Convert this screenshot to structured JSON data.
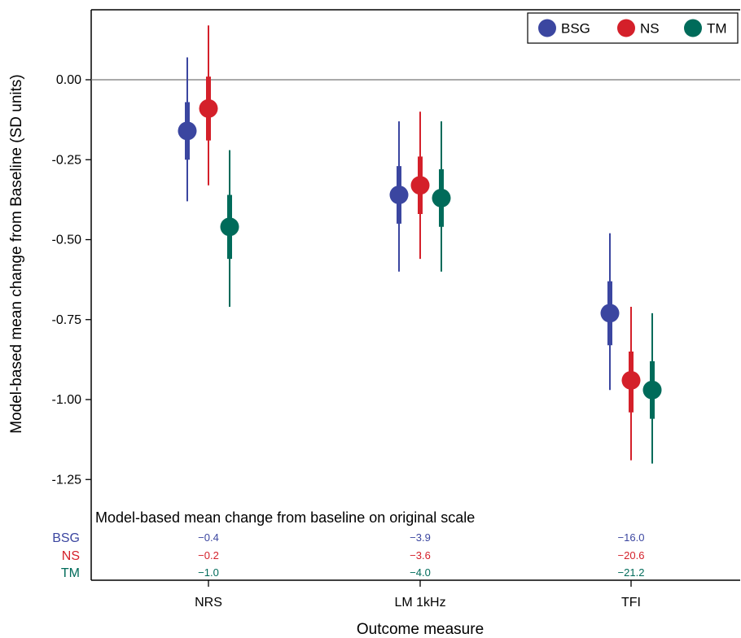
{
  "chart_data": {
    "type": "scatter",
    "ylabel": "Model-based mean change from Baseline (SD units)",
    "xlabel": "Outcome measure",
    "categories": [
      "NRS",
      "LM 1kHz",
      "TFI"
    ],
    "ylim": [
      -1.42,
      0.22
    ],
    "yticks": [
      0.0,
      -0.25,
      -0.5,
      -0.75,
      -1.0,
      -1.25
    ],
    "ytick_labels": [
      "0.00",
      "-0.25",
      "-0.50",
      "-0.75",
      "-1.00",
      "-1.25"
    ],
    "reference_line": 0.0,
    "legend_position": "top-right",
    "series": [
      {
        "name": "BSG",
        "color": "#3b46a0",
        "means": [
          -0.16,
          -0.36,
          -0.73
        ],
        "inner_low": [
          -0.25,
          -0.45,
          -0.83
        ],
        "inner_high": [
          -0.07,
          -0.27,
          -0.63
        ],
        "outer_low": [
          -0.38,
          -0.6,
          -0.97
        ],
        "outer_high": [
          0.07,
          -0.13,
          -0.48
        ]
      },
      {
        "name": "NS",
        "color": "#d4202a",
        "means": [
          -0.09,
          -0.33,
          -0.94
        ],
        "inner_low": [
          -0.19,
          -0.42,
          -1.04
        ],
        "inner_high": [
          0.01,
          -0.24,
          -0.85
        ],
        "outer_low": [
          -0.33,
          -0.56,
          -1.19
        ],
        "outer_high": [
          0.17,
          -0.1,
          -0.71
        ]
      },
      {
        "name": "TM",
        "color": "#006b5a",
        "means": [
          -0.46,
          -0.37,
          -0.97
        ],
        "inner_low": [
          -0.56,
          -0.46,
          -1.06
        ],
        "inner_high": [
          -0.36,
          -0.28,
          -0.88
        ],
        "outer_low": [
          -0.71,
          -0.6,
          -1.2
        ],
        "outer_high": [
          -0.22,
          -0.13,
          -0.73
        ]
      }
    ],
    "table": {
      "title": "Model-based mean change from baseline on original scale",
      "rows": [
        {
          "label": "BSG",
          "values": [
            "−0.4",
            "−3.9",
            "−16.0"
          ]
        },
        {
          "label": "NS",
          "values": [
            "−0.2",
            "−3.6",
            "−20.6"
          ]
        },
        {
          "label": "TM",
          "values": [
            "−1.0",
            "−4.0",
            "−21.2"
          ]
        }
      ]
    }
  }
}
